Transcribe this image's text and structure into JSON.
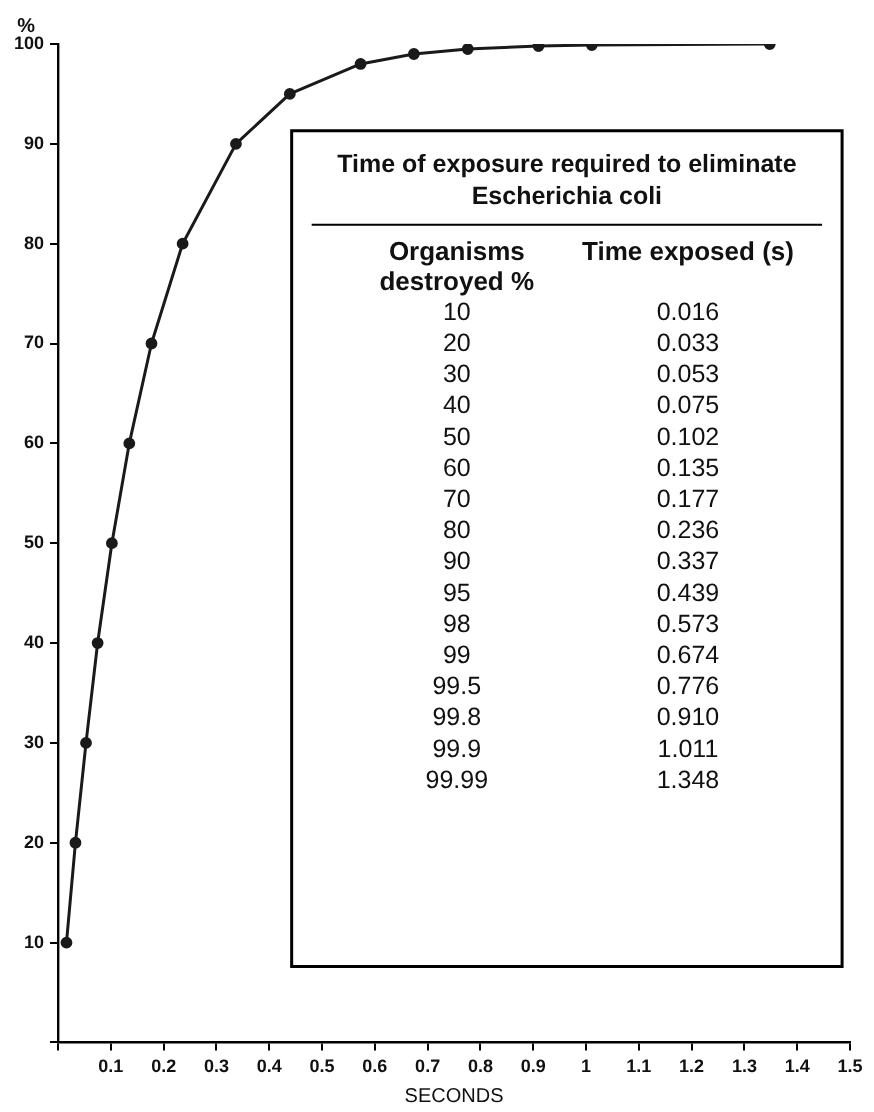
{
  "chart_data": {
    "type": "line",
    "title": "Time of exposure required to eliminate Escherichia coli",
    "xlabel": "SECONDS",
    "ylabel": "%",
    "annotations": [
      "Organisms destroyed %",
      "Time exposed (s)",
      "10",
      "0.016",
      "20",
      "0.033",
      "30",
      "0.053",
      "40",
      "0.075",
      "50",
      "0.102",
      "60",
      "0.135",
      "70",
      "0.177",
      "80",
      "0.236",
      "90",
      "0.337",
      "95",
      "0.439",
      "98",
      "0.573",
      "99",
      "0.674",
      "99.5",
      "0.776",
      "99.8",
      "0.910",
      "99.9",
      "1.011",
      "99.99",
      "1.348"
    ],
    "x": [
      0.016,
      0.033,
      0.053,
      0.075,
      0.102,
      0.135,
      0.177,
      0.236,
      0.337,
      0.439,
      0.573,
      0.674,
      0.776,
      0.91,
      1.011,
      1.348
    ],
    "series": [
      {
        "color": "#1a1a1a",
        "values": [
          10,
          20,
          30,
          40,
          50,
          60,
          70,
          80,
          90,
          95,
          98,
          99,
          99.5,
          99.8,
          99.9,
          100
        ]
      }
    ],
    "xlim": [
      0,
      1.5
    ],
    "xticks": [
      {
        "value": 0,
        "label": null
      },
      0.1,
      0.2,
      0.3,
      0.4,
      0.5,
      0.6,
      0.7,
      0.8,
      0.9,
      1.0,
      1.1,
      1.2,
      1.3,
      1.4,
      1.5
    ],
    "ylim": [
      0,
      100
    ],
    "yticks": [
      {
        "value": 0,
        "label": null
      },
      10,
      20,
      30,
      40,
      50,
      60,
      70,
      80,
      90,
      100
    ],
    "grid": false,
    "legend": false,
    "marker": "circle",
    "line_style": "solid"
  }
}
